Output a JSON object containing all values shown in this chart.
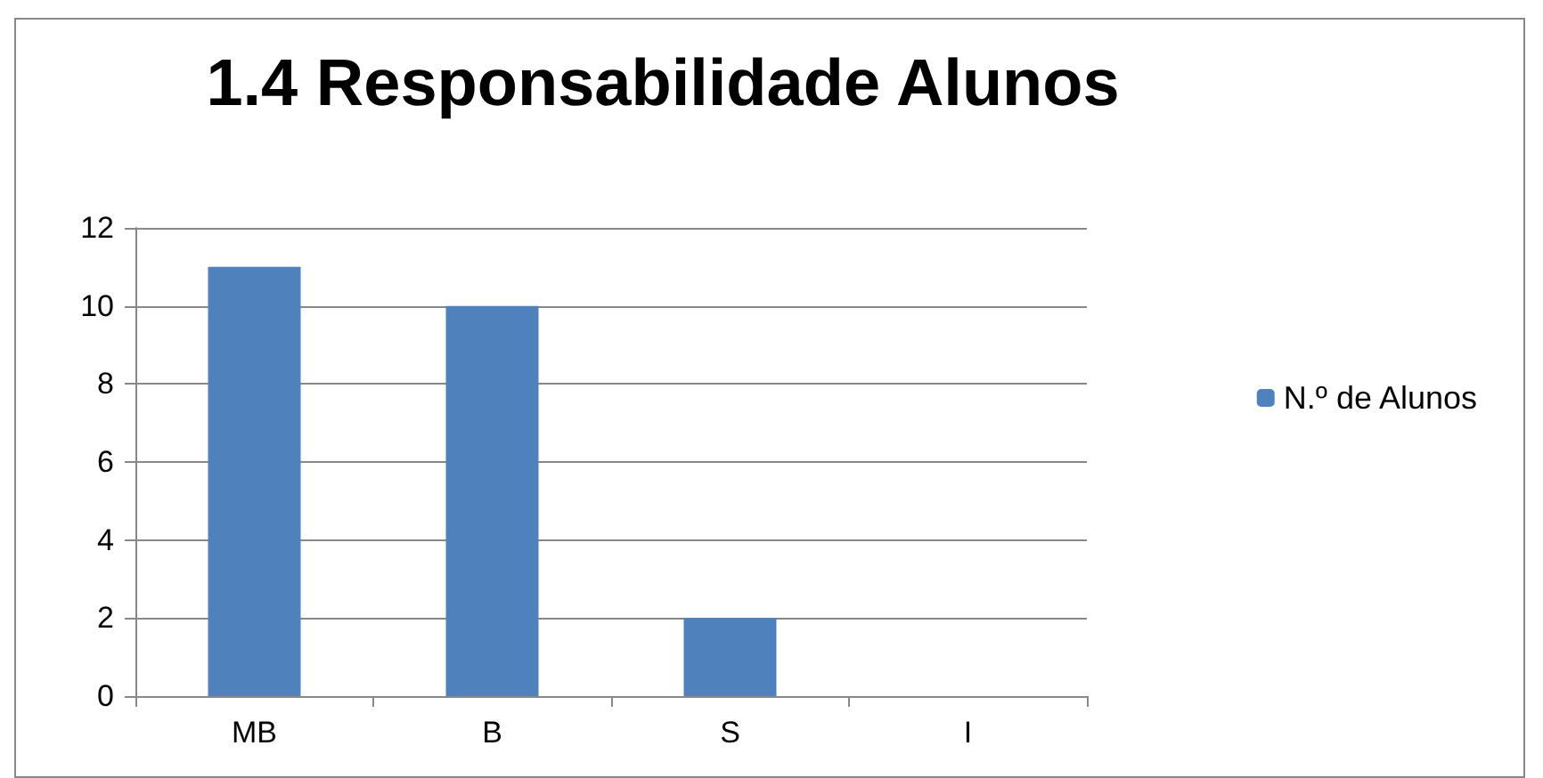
{
  "chart_data": {
    "type": "bar",
    "title": "1.4 Responsabilidade Alunos",
    "categories": [
      "MB",
      "B",
      "S",
      "I"
    ],
    "series": [
      {
        "name": "N.º de Alunos",
        "color": "#4f81bd",
        "values": [
          11,
          10,
          2,
          0
        ]
      }
    ],
    "ylim": [
      0,
      12
    ],
    "yticks": [
      0,
      2,
      4,
      6,
      8,
      10,
      12
    ],
    "grid": "y",
    "legend": "right"
  }
}
